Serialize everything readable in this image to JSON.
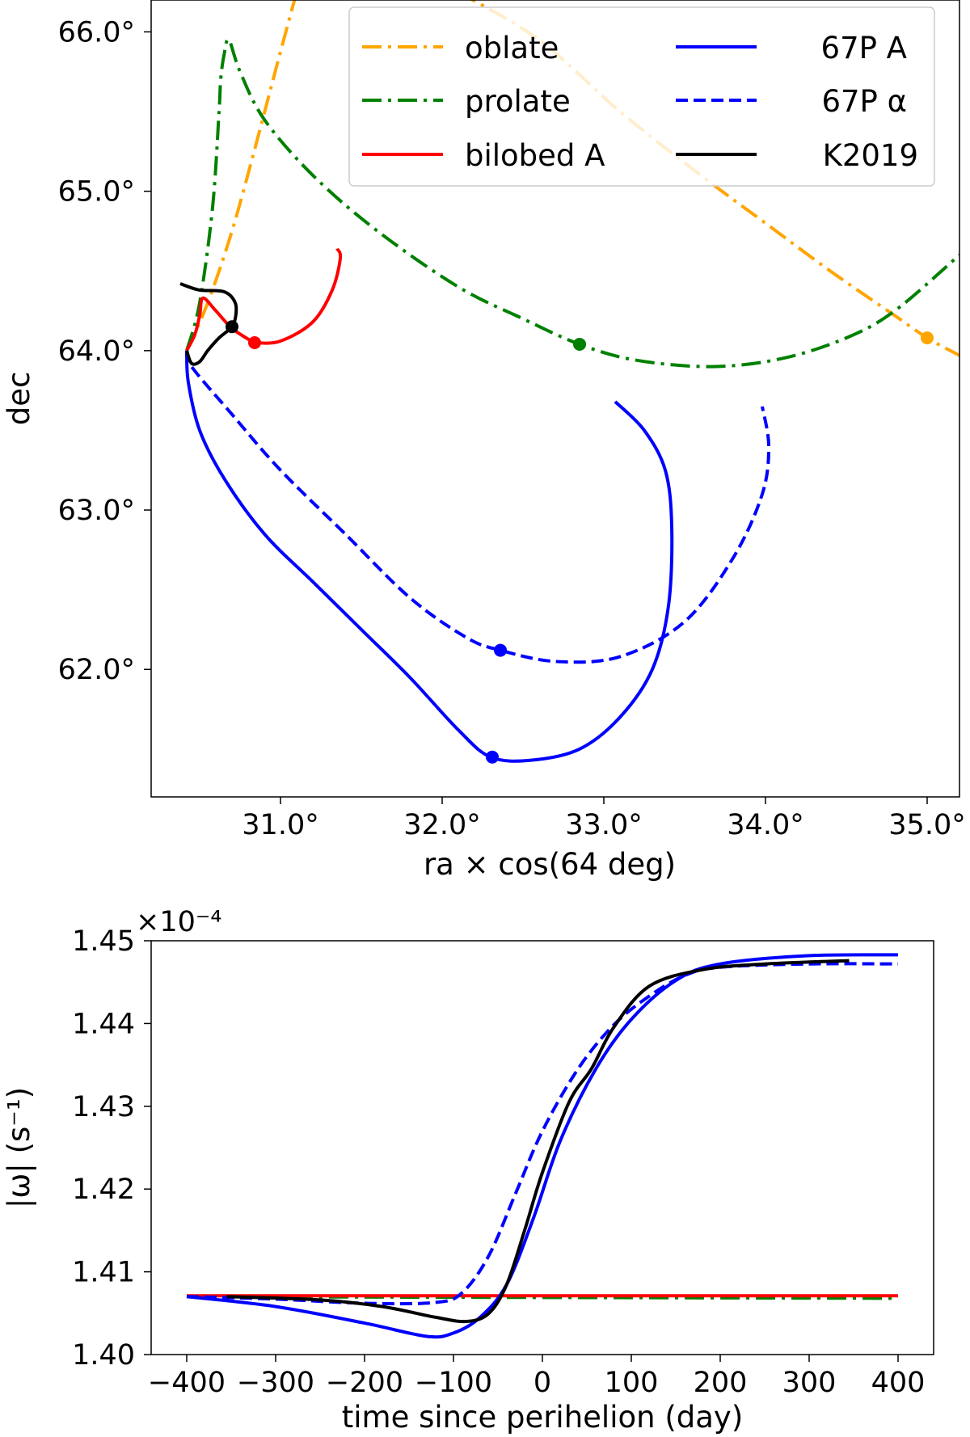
{
  "chart_data": [
    {
      "type": "line",
      "xlabel": "ra × cos(64 deg)",
      "ylabel": "dec",
      "xlim": [
        30.2,
        35.2
      ],
      "ylim": [
        61.2,
        66.2
      ],
      "x_ticks": [
        31.0,
        32.0,
        33.0,
        34.0,
        35.0
      ],
      "x_tick_labels": [
        "31.0°",
        "32.0°",
        "33.0°",
        "34.0°",
        "35.0°"
      ],
      "y_ticks": [
        62.0,
        63.0,
        64.0,
        65.0,
        66.0
      ],
      "y_tick_labels": [
        "62.0°",
        "63.0°",
        "64.0°",
        "65.0°",
        "66.0°"
      ],
      "grid": false,
      "legend": "top-right",
      "series": [
        {
          "name": "oblate",
          "color": "#ffa500",
          "dash": "dashdot",
          "points": [
            [
              30.42,
              64.0
            ],
            [
              30.55,
              64.3
            ],
            [
              30.7,
              64.75
            ],
            [
              30.85,
              65.3
            ],
            [
              30.98,
              65.8
            ],
            [
              31.1,
              66.25
            ]
          ],
          "points2": [
            [
              32.1,
              66.25
            ],
            [
              32.6,
              65.95
            ],
            [
              33.1,
              65.5
            ],
            [
              33.6,
              65.1
            ],
            [
              34.0,
              64.8
            ],
            [
              34.4,
              64.5
            ],
            [
              34.8,
              64.22
            ],
            [
              35.0,
              64.08
            ],
            [
              35.2,
              63.97
            ]
          ],
          "marker": [
            35.0,
            64.08
          ]
        },
        {
          "name": "prolate",
          "color": "#008000",
          "dash": "dashdot",
          "points": [
            [
              30.42,
              64.0
            ],
            [
              30.5,
              64.3
            ],
            [
              30.58,
              64.9
            ],
            [
              30.62,
              65.5
            ],
            [
              30.63,
              65.7
            ],
            [
              30.65,
              65.85
            ],
            [
              30.68,
              65.95
            ],
            [
              30.75,
              65.75
            ],
            [
              30.9,
              65.45
            ],
            [
              31.2,
              65.1
            ],
            [
              31.6,
              64.75
            ],
            [
              32.1,
              64.4
            ],
            [
              32.5,
              64.2
            ],
            [
              32.85,
              64.04
            ],
            [
              33.2,
              63.94
            ],
            [
              33.67,
              63.9
            ],
            [
              34.1,
              63.95
            ],
            [
              34.5,
              64.08
            ],
            [
              34.8,
              64.25
            ],
            [
              35.2,
              64.6
            ]
          ],
          "marker": [
            32.85,
            64.04
          ]
        },
        {
          "name": "bilobed A",
          "color": "#ff0000",
          "dash": "solid",
          "points": [
            [
              30.42,
              64.0
            ],
            [
              30.47,
              64.1
            ],
            [
              30.5,
              64.22
            ],
            [
              30.52,
              64.33
            ],
            [
              30.6,
              64.25
            ],
            [
              30.7,
              64.14
            ],
            [
              30.82,
              64.06
            ],
            [
              30.84,
              64.05
            ],
            [
              31.0,
              64.06
            ],
            [
              31.2,
              64.18
            ],
            [
              31.32,
              64.38
            ],
            [
              31.37,
              64.58
            ],
            [
              31.35,
              64.64
            ]
          ],
          "marker": [
            30.84,
            64.05
          ]
        },
        {
          "name": "67P A",
          "color": "#0000ff",
          "dash": "solid",
          "points": [
            [
              30.42,
              64.0
            ],
            [
              30.43,
              63.8
            ],
            [
              30.5,
              63.5
            ],
            [
              30.65,
              63.2
            ],
            [
              30.9,
              62.85
            ],
            [
              31.2,
              62.55
            ],
            [
              31.5,
              62.25
            ],
            [
              31.8,
              61.95
            ],
            [
              32.1,
              61.62
            ],
            [
              32.3,
              61.45
            ],
            [
              32.55,
              61.43
            ],
            [
              32.85,
              61.5
            ],
            [
              33.1,
              61.7
            ],
            [
              33.3,
              62.0
            ],
            [
              33.4,
              62.4
            ],
            [
              33.42,
              62.9
            ],
            [
              33.38,
              63.25
            ],
            [
              33.25,
              63.5
            ],
            [
              33.07,
              63.68
            ]
          ],
          "marker": [
            32.31,
            61.45
          ]
        },
        {
          "name": "67P α",
          "color": "#0000ff",
          "dash": "dashed",
          "points": [
            [
              30.42,
              64.0
            ],
            [
              30.45,
              63.9
            ],
            [
              30.7,
              63.6
            ],
            [
              31.0,
              63.25
            ],
            [
              31.4,
              62.85
            ],
            [
              31.8,
              62.45
            ],
            [
              32.15,
              62.2
            ],
            [
              32.36,
              62.12
            ],
            [
              32.7,
              62.05
            ],
            [
              33.1,
              62.08
            ],
            [
              33.5,
              62.3
            ],
            [
              33.8,
              62.7
            ],
            [
              33.98,
              63.1
            ],
            [
              34.02,
              63.4
            ],
            [
              33.98,
              63.65
            ]
          ],
          "marker": [
            32.36,
            62.12
          ]
        },
        {
          "name": "K2019",
          "color": "#000000",
          "dash": "solid",
          "points": [
            [
              30.42,
              64.0
            ],
            [
              30.45,
              63.92
            ],
            [
              30.5,
              63.93
            ],
            [
              30.55,
              64.0
            ],
            [
              30.62,
              64.08
            ],
            [
              30.69,
              64.14
            ],
            [
              30.72,
              64.2
            ],
            [
              30.72,
              64.3
            ],
            [
              30.65,
              64.37
            ],
            [
              30.5,
              64.38
            ],
            [
              30.38,
              64.42
            ]
          ],
          "marker": [
            30.7,
            64.15
          ]
        }
      ]
    },
    {
      "type": "line",
      "xlabel": "time since perihelion (day)",
      "ylabel": "|ω| (s⁻¹)",
      "offset_label": "×10⁻⁴",
      "xlim": [
        -440,
        440
      ],
      "ylim": [
        1.4,
        1.45
      ],
      "x_ticks": [
        -400,
        -300,
        -200,
        -100,
        0,
        100,
        200,
        300,
        400
      ],
      "x_tick_labels": [
        "−400",
        "−300",
        "−200",
        "−100",
        "0",
        "100",
        "200",
        "300",
        "400"
      ],
      "y_ticks": [
        1.4,
        1.41,
        1.42,
        1.43,
        1.44,
        1.45
      ],
      "y_tick_labels": [
        "1.40",
        "1.41",
        "1.42",
        "1.43",
        "1.44",
        "1.45"
      ],
      "grid": false,
      "series": [
        {
          "name": "oblate",
          "color": "#ffa500",
          "dash": "dashdot",
          "points": [
            [
              -400,
              1.407
            ],
            [
              400,
              1.4071
            ]
          ]
        },
        {
          "name": "prolate",
          "color": "#008000",
          "dash": "dashdot",
          "points": [
            [
              -400,
              1.407
            ],
            [
              400,
              1.4068
            ]
          ]
        },
        {
          "name": "bilobed A",
          "color": "#ff0000",
          "dash": "solid",
          "points": [
            [
              -400,
              1.4071
            ],
            [
              400,
              1.4071
            ]
          ]
        },
        {
          "name": "67P A",
          "color": "#0000ff",
          "dash": "solid",
          "points": [
            [
              -400,
              1.407
            ],
            [
              -300,
              1.4058
            ],
            [
              -200,
              1.4038
            ],
            [
              -130,
              1.4022
            ],
            [
              -100,
              1.4026
            ],
            [
              -70,
              1.4045
            ],
            [
              -40,
              1.4085
            ],
            [
              -10,
              1.4165
            ],
            [
              20,
              1.4258
            ],
            [
              60,
              1.4345
            ],
            [
              100,
              1.4405
            ],
            [
              150,
              1.4452
            ],
            [
              200,
              1.4472
            ],
            [
              300,
              1.4482
            ],
            [
              400,
              1.4483
            ]
          ]
        },
        {
          "name": "67P α",
          "color": "#0000ff",
          "dash": "dashed",
          "points": [
            [
              -400,
              1.407
            ],
            [
              -300,
              1.4067
            ],
            [
              -200,
              1.4062
            ],
            [
              -120,
              1.4063
            ],
            [
              -90,
              1.4075
            ],
            [
              -60,
              1.412
            ],
            [
              -30,
              1.4195
            ],
            [
              0,
              1.427
            ],
            [
              40,
              1.4345
            ],
            [
              80,
              1.4398
            ],
            [
              120,
              1.4433
            ],
            [
              160,
              1.4458
            ],
            [
              200,
              1.4468
            ],
            [
              300,
              1.4472
            ],
            [
              400,
              1.4472
            ]
          ]
        },
        {
          "name": "K2019",
          "color": "#000000",
          "dash": "solid",
          "points": [
            [
              -355,
              1.407
            ],
            [
              -250,
              1.4066
            ],
            [
              -180,
              1.4058
            ],
            [
              -120,
              1.4045
            ],
            [
              -85,
              1.404
            ],
            [
              -60,
              1.405
            ],
            [
              -40,
              1.4085
            ],
            [
              -20,
              1.415
            ],
            [
              0,
              1.422
            ],
            [
              30,
              1.4305
            ],
            [
              55,
              1.4345
            ],
            [
              80,
              1.4395
            ],
            [
              120,
              1.4445
            ],
            [
              180,
              1.4465
            ],
            [
              250,
              1.4472
            ],
            [
              345,
              1.4476
            ]
          ]
        }
      ]
    }
  ]
}
